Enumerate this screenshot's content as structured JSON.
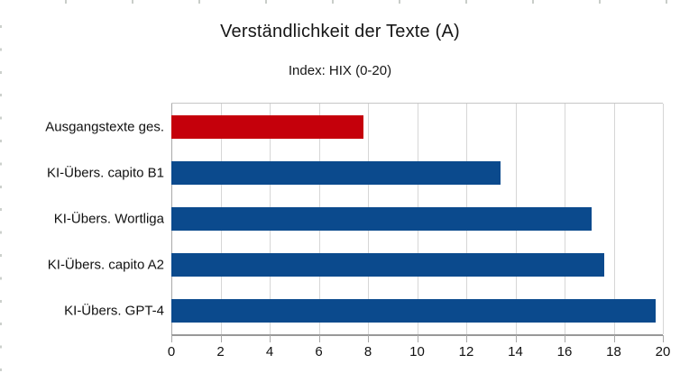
{
  "chart_data": {
    "type": "bar",
    "orientation": "horizontal",
    "title": "Verständlichkeit der Texte (A)",
    "subtitle": "Index: HIX (0-20)",
    "categories": [
      "Ausgangstexte ges.",
      "KI-Übers. capito B1",
      "KI-Übers. Wortliga",
      "KI-Übers. capito A2",
      "KI-Übers. GPT-4"
    ],
    "series": [
      {
        "name": "HIX",
        "values": [
          7.8,
          13.4,
          17.1,
          17.6,
          19.7
        ]
      }
    ],
    "values": [
      7.8,
      13.4,
      17.1,
      17.6,
      19.7
    ],
    "bar_colors": [
      "#c5000b",
      "#0b4a8d",
      "#0b4a8d",
      "#0b4a8d",
      "#0b4a8d"
    ],
    "highlight_color": "#c5000b",
    "default_color": "#0b4a8d",
    "xlim": [
      0,
      20
    ],
    "x_ticks": [
      0,
      2,
      4,
      6,
      8,
      10,
      12,
      14,
      16,
      18,
      20
    ],
    "xlabel": "",
    "ylabel": "",
    "grid": true,
    "grid_color": "#d6d6d6",
    "legend": "none",
    "background": "#ffffff"
  }
}
